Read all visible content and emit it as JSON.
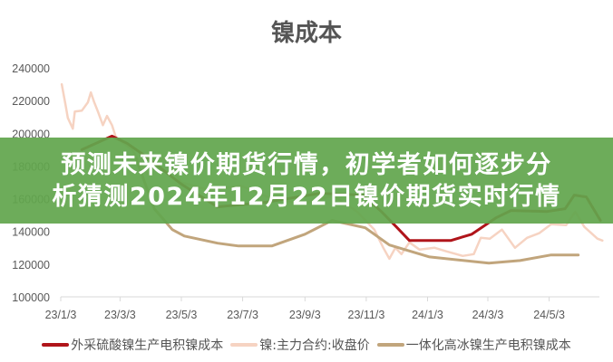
{
  "banner": {
    "line1": "预测未来镍价期货行情，初学者如何逐步分",
    "line2": "析猜测2024年12月22日镍价期货实时行情",
    "color": "#62a64e"
  },
  "chart_data": {
    "type": "line",
    "title": "镍成本",
    "xlabel": "",
    "ylabel": "",
    "x_type": "date",
    "xlim": [
      "2023-01-03",
      "2024-06-22"
    ],
    "ylim": [
      100000,
      240000
    ],
    "y_ticks": [
      "100000",
      "120000",
      "140000",
      "160000",
      "180000",
      "200000",
      "220000",
      "240000"
    ],
    "x_ticks": [
      {
        "label": "23/1/3",
        "date": "2023-01-03"
      },
      {
        "label": "23/3/3",
        "date": "2023-03-03"
      },
      {
        "label": "23/5/3",
        "date": "2023-05-03"
      },
      {
        "label": "23/7/3",
        "date": "2023-07-03"
      },
      {
        "label": "23/9/3",
        "date": "2023-09-03"
      },
      {
        "label": "23/11/3",
        "date": "2023-11-03"
      },
      {
        "label": "24/1/3",
        "date": "2024-01-03"
      },
      {
        "label": "24/3/3",
        "date": "2024-03-03"
      },
      {
        "label": "24/5/3",
        "date": "2024-05-03"
      }
    ],
    "grid": false,
    "legend_position": "bottom",
    "series": [
      {
        "name": "外采硫酸镍生产电积镍成本",
        "color": "#b0141a",
        "points": [
          [
            "2023-01-24",
            190000
          ],
          [
            "2023-02-23",
            198300
          ],
          [
            "2023-03-10",
            193900
          ],
          [
            "2023-03-28",
            186100
          ],
          [
            "2023-05-03",
            168900
          ],
          [
            "2023-06-08",
            155000
          ],
          [
            "2023-07-26",
            157800
          ],
          [
            "2023-09-18",
            163300
          ],
          [
            "2023-10-31",
            162200
          ],
          [
            "2023-11-18",
            152200
          ],
          [
            "2023-12-03",
            142800
          ],
          [
            "2023-12-16",
            134400
          ],
          [
            "2024-01-26",
            134400
          ],
          [
            "2024-02-16",
            138300
          ],
          [
            "2024-03-11",
            148300
          ],
          [
            "2024-03-26",
            152800
          ],
          [
            "2024-05-01",
            152200
          ],
          [
            "2024-05-19",
            153900
          ],
          [
            "2024-05-28",
            162200
          ],
          [
            "2024-06-09",
            161100
          ],
          [
            "2024-06-23",
            146700
          ]
        ]
      },
      {
        "name": "镍:主力合约:收盘价",
        "color": "#f6d3c2",
        "points": [
          [
            "2023-01-04",
            230000
          ],
          [
            "2023-01-08",
            216700
          ],
          [
            "2023-01-10",
            209400
          ],
          [
            "2023-01-15",
            202800
          ],
          [
            "2023-01-17",
            213300
          ],
          [
            "2023-01-24",
            213900
          ],
          [
            "2023-01-30",
            218900
          ],
          [
            "2023-02-02",
            225000
          ],
          [
            "2023-02-05",
            219400
          ],
          [
            "2023-02-09",
            213300
          ],
          [
            "2023-02-14",
            205000
          ],
          [
            "2023-02-18",
            210600
          ],
          [
            "2023-02-23",
            205000
          ],
          [
            "2023-02-27",
            197200
          ],
          [
            "2023-03-15",
            190000
          ],
          [
            "2023-03-30",
            175000
          ],
          [
            "2023-04-15",
            185000
          ],
          [
            "2023-05-03",
            170000
          ],
          [
            "2023-06-01",
            165000
          ],
          [
            "2023-07-01",
            168000
          ],
          [
            "2023-08-01",
            160000
          ],
          [
            "2023-09-01",
            157000
          ],
          [
            "2023-10-01",
            162000
          ],
          [
            "2023-10-25",
            152000
          ],
          [
            "2023-11-11",
            141100
          ],
          [
            "2023-11-20",
            130000
          ],
          [
            "2023-11-26",
            123300
          ],
          [
            "2023-12-02",
            130000
          ],
          [
            "2023-12-08",
            126100
          ],
          [
            "2023-12-16",
            133300
          ],
          [
            "2023-12-26",
            128900
          ],
          [
            "2024-01-10",
            130000
          ],
          [
            "2024-01-22",
            127800
          ],
          [
            "2024-02-07",
            125000
          ],
          [
            "2024-02-18",
            126100
          ],
          [
            "2024-02-25",
            136100
          ],
          [
            "2024-03-05",
            135600
          ],
          [
            "2024-03-17",
            141100
          ],
          [
            "2024-03-30",
            130000
          ],
          [
            "2024-04-11",
            136100
          ],
          [
            "2024-04-23",
            138900
          ],
          [
            "2024-05-05",
            144400
          ],
          [
            "2024-05-20",
            143900
          ],
          [
            "2024-05-29",
            152000
          ],
          [
            "2024-06-07",
            142800
          ],
          [
            "2024-06-20",
            135600
          ],
          [
            "2024-06-25",
            134400
          ]
        ]
      },
      {
        "name": "一体化高冰镍生产电积镍成本",
        "color": "#c1a57c",
        "points": [
          [
            "2023-03-19",
            184400
          ],
          [
            "2023-04-06",
            153900
          ],
          [
            "2023-04-24",
            141100
          ],
          [
            "2023-05-06",
            137200
          ],
          [
            "2023-06-08",
            132800
          ],
          [
            "2023-06-29",
            131100
          ],
          [
            "2023-08-01",
            131100
          ],
          [
            "2023-09-03",
            138300
          ],
          [
            "2023-09-30",
            146700
          ],
          [
            "2023-11-02",
            142200
          ],
          [
            "2023-11-26",
            131700
          ],
          [
            "2024-01-05",
            124400
          ],
          [
            "2024-03-04",
            120600
          ],
          [
            "2024-04-04",
            122200
          ],
          [
            "2024-05-05",
            125600
          ],
          [
            "2024-06-01",
            125600
          ]
        ]
      }
    ]
  }
}
